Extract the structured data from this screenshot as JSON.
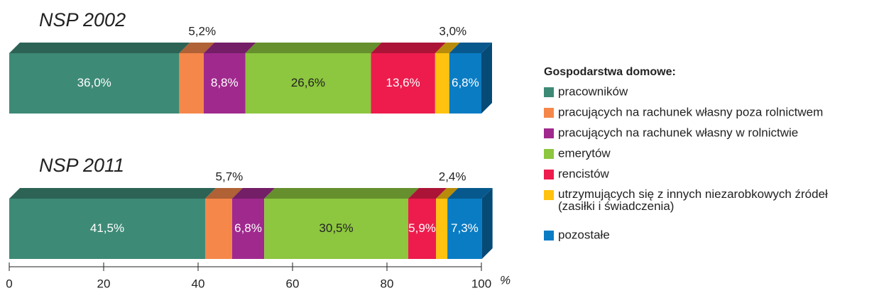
{
  "chart_data": {
    "type": "bar",
    "orientation": "horizontal",
    "stacked": true,
    "categories": [
      "NSP 2002",
      "NSP 2011"
    ],
    "legend_title": "Gospodarstwa domowe:",
    "series": [
      {
        "name": "pracowników",
        "color": "#3d8a76",
        "values": [
          36.0,
          41.5
        ],
        "value_labels": [
          "36,0%",
          "41,5%"
        ]
      },
      {
        "name": "pracujących na rachunek własny poza rolnictwem",
        "color": "#f5874a",
        "values": [
          5.2,
          5.7
        ],
        "value_labels": [
          "5,2%",
          "5,7%"
        ]
      },
      {
        "name": "pracujących na rachunek własny w rolnictwie",
        "color": "#a0298e",
        "values": [
          8.8,
          6.8
        ],
        "value_labels": [
          "8,8%",
          "6,8%"
        ]
      },
      {
        "name": "emerytów",
        "color": "#8dc63f",
        "values": [
          26.6,
          30.5
        ],
        "value_labels": [
          "26,6%",
          "30,5%"
        ]
      },
      {
        "name": "rencistów",
        "color": "#ed1c4d",
        "values": [
          13.6,
          5.9
        ],
        "value_labels": [
          "13,6%",
          "5,9%"
        ]
      },
      {
        "name": "utrzymujących się z innych niezarobkowych źródeł (zasiłki  i świadczenia)",
        "color": "#ffc20e",
        "values": [
          3.0,
          2.4
        ],
        "value_labels": [
          "3,0%",
          "2,4%"
        ]
      },
      {
        "name": "pozostałe",
        "color": "#0a7cc4",
        "values": [
          6.8,
          7.3
        ],
        "value_labels": [
          "6,8%",
          "7,3%"
        ]
      }
    ],
    "xlim": [
      0,
      100
    ],
    "xticks": [
      0,
      20,
      40,
      60,
      80,
      100
    ],
    "x_unit": "%"
  }
}
